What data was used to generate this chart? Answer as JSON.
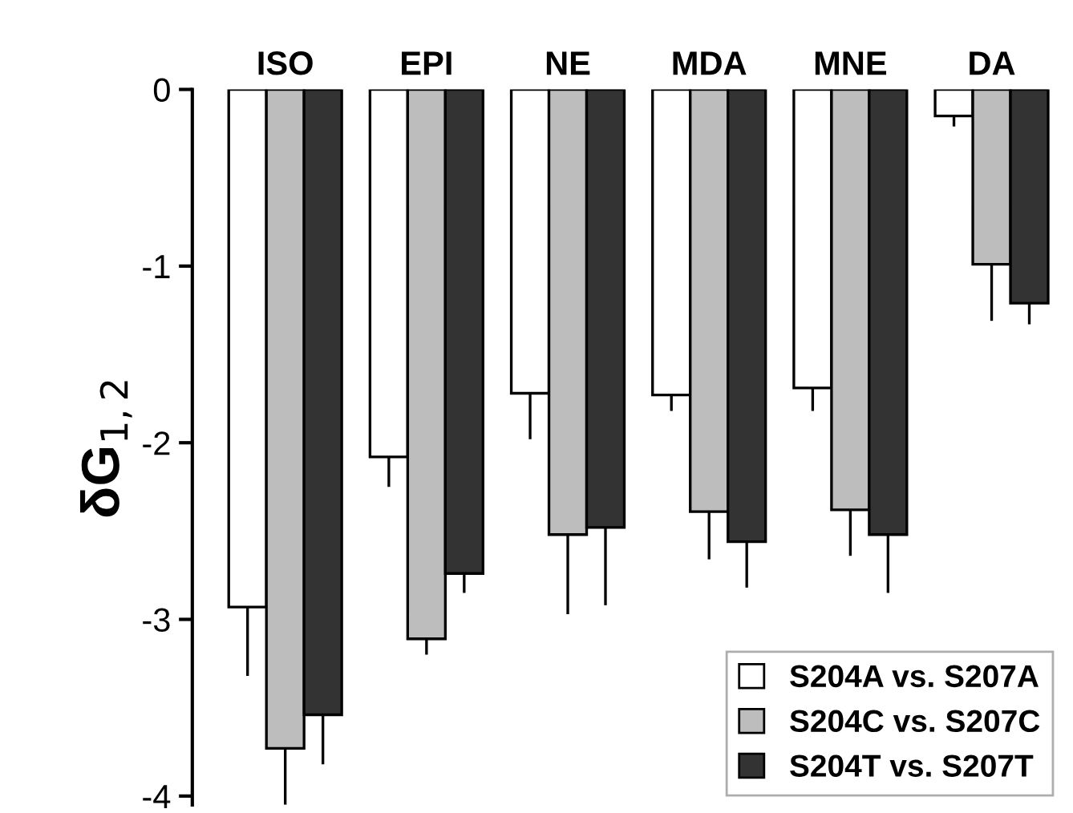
{
  "chart_data": {
    "type": "bar",
    "ylabel": "δG$_{1,2}$",
    "categories": [
      "ISO",
      "EPI",
      "NE",
      "MDA",
      "MNE",
      "DA"
    ],
    "series": [
      {
        "name": "S204A vs. S207A",
        "color": "#ffffff",
        "values": [
          -2.93,
          -2.08,
          -1.72,
          -1.73,
          -1.69,
          -0.15
        ],
        "errors": [
          [
            -3.32,
            -2.93
          ],
          [
            -2.25,
            -2.08
          ],
          [
            -1.98,
            -1.72
          ],
          [
            -1.82,
            -1.73
          ],
          [
            -1.82,
            -1.69
          ],
          [
            -0.21,
            -0.15
          ]
        ]
      },
      {
        "name": "S204C vs. S207C",
        "color": "#bdbdbd",
        "values": [
          -3.73,
          -3.11,
          -2.52,
          -2.39,
          -2.38,
          -0.99
        ],
        "errors": [
          [
            -4.05,
            -3.73
          ],
          [
            -3.2,
            -3.11
          ],
          [
            -2.97,
            -2.52
          ],
          [
            -2.66,
            -2.39
          ],
          [
            -2.64,
            -2.38
          ],
          [
            -1.31,
            -0.99
          ]
        ]
      },
      {
        "name": "S204T vs. S207T",
        "color": "#333333",
        "values": [
          -3.54,
          -2.74,
          -2.48,
          -2.56,
          -2.52,
          -1.21
        ],
        "errors": [
          [
            -3.82,
            -3.54
          ],
          [
            -2.85,
            -2.74
          ],
          [
            -2.92,
            -2.48
          ],
          [
            -2.82,
            -2.56
          ],
          [
            -2.85,
            -2.52
          ],
          [
            -1.33,
            -1.21
          ]
        ]
      }
    ],
    "ylim": [
      -4.05,
      0
    ],
    "yticks": [
      0,
      -1,
      -2,
      -3,
      -4
    ],
    "grid": false,
    "legend": "bottom right"
  }
}
